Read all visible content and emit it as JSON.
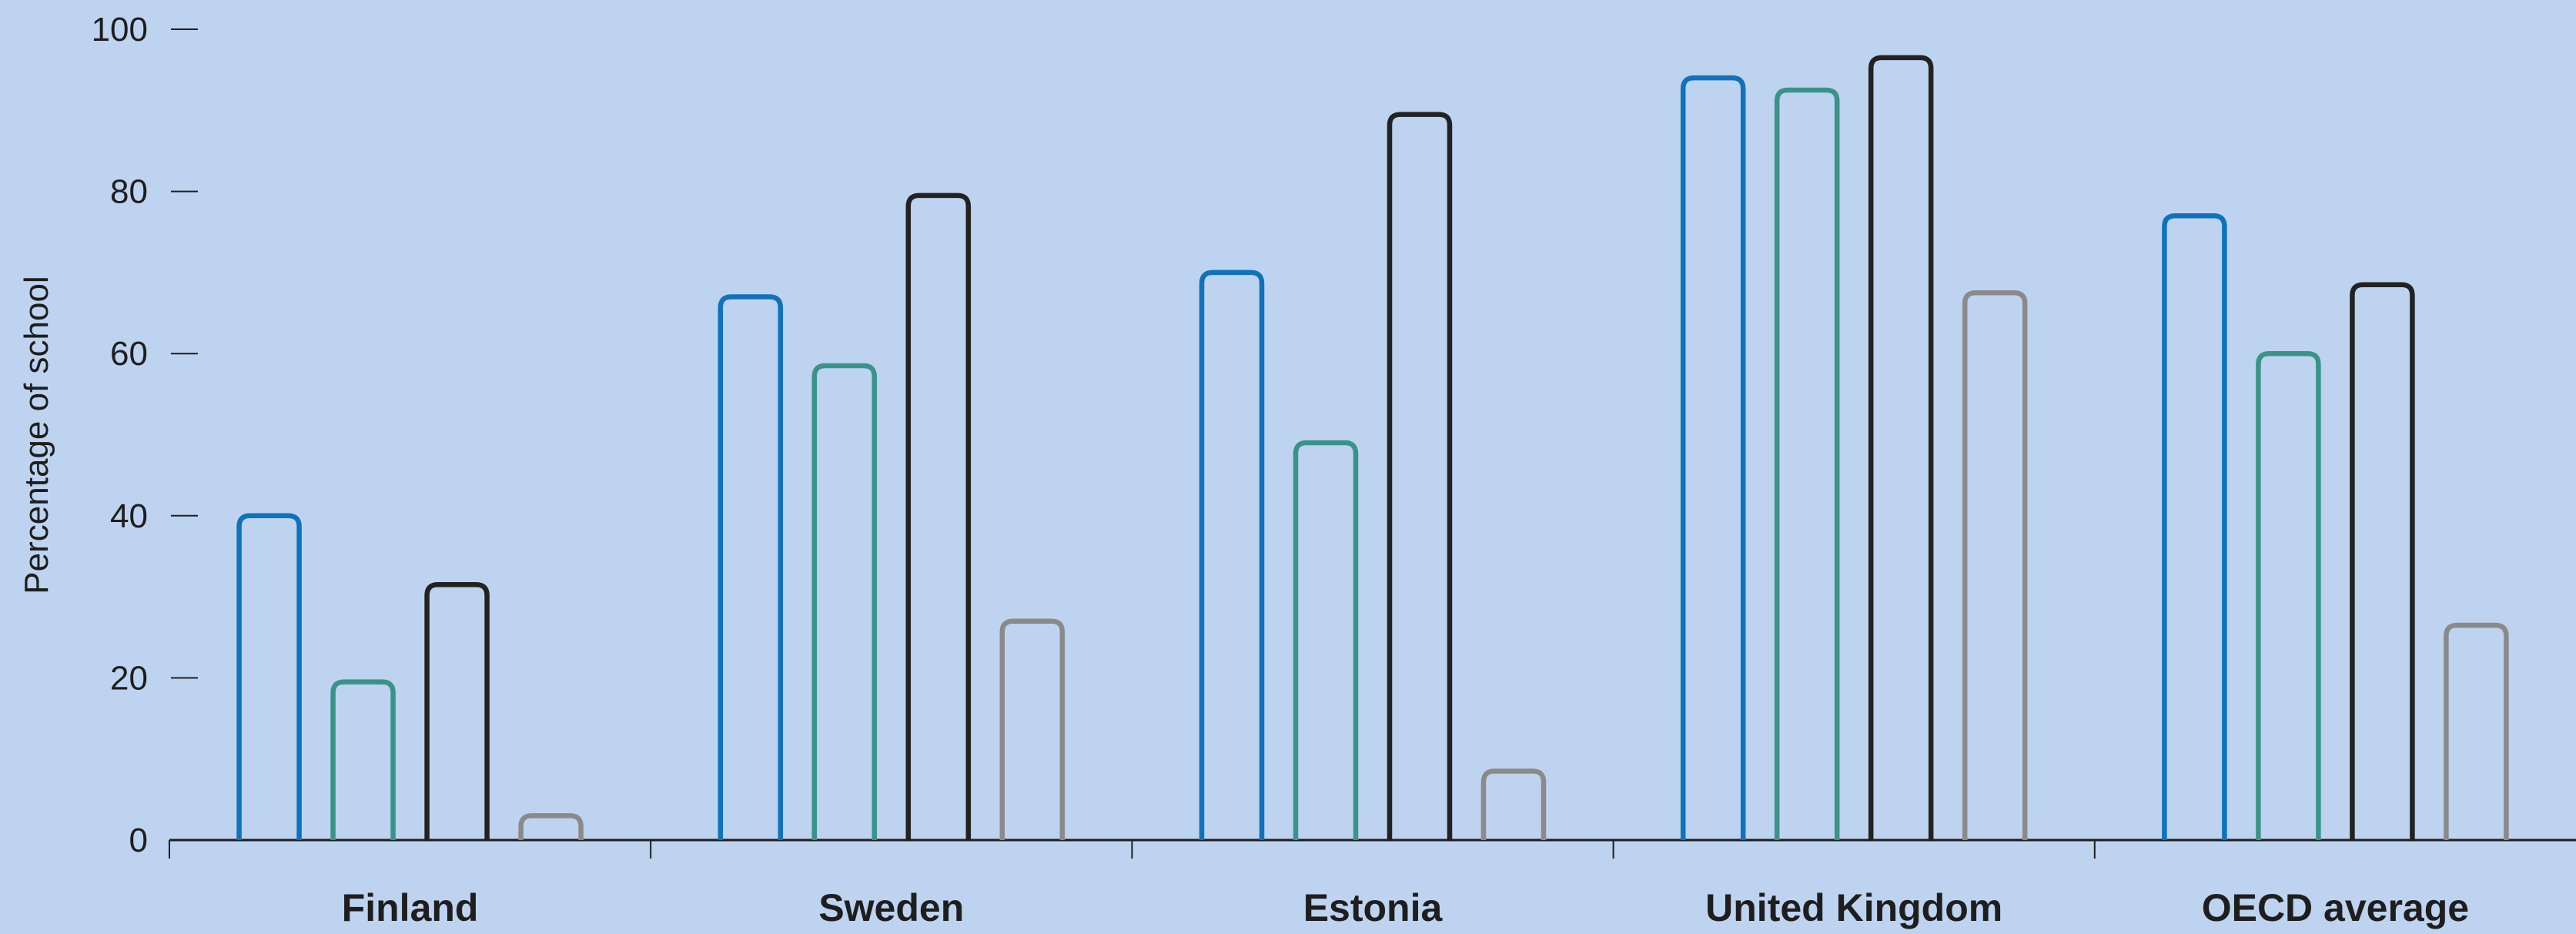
{
  "chart_data": {
    "type": "bar",
    "ylabel": "Percentage of school",
    "xlabel": "",
    "ylim": [
      0,
      100
    ],
    "yticks": [
      "0",
      "20",
      "40",
      "60",
      "80",
      "100"
    ],
    "categories": [
      "Finland",
      "Sweden",
      "Estonia",
      "United Kingdom",
      "OECD average"
    ],
    "series": [
      {
        "color": "#0f72ba",
        "values": [
          40,
          67,
          70,
          94,
          77
        ]
      },
      {
        "color": "#3a9389",
        "values": [
          19.5,
          58.5,
          49,
          92.5,
          60
        ]
      },
      {
        "color": "#222222",
        "values": [
          31.5,
          79.5,
          89.5,
          96.5,
          68.5
        ]
      },
      {
        "color": "#8a8a8a",
        "values": [
          3,
          27,
          8.5,
          67.5,
          26.5
        ]
      }
    ],
    "grid": false,
    "legend": "none",
    "bar_style": "outlined"
  }
}
